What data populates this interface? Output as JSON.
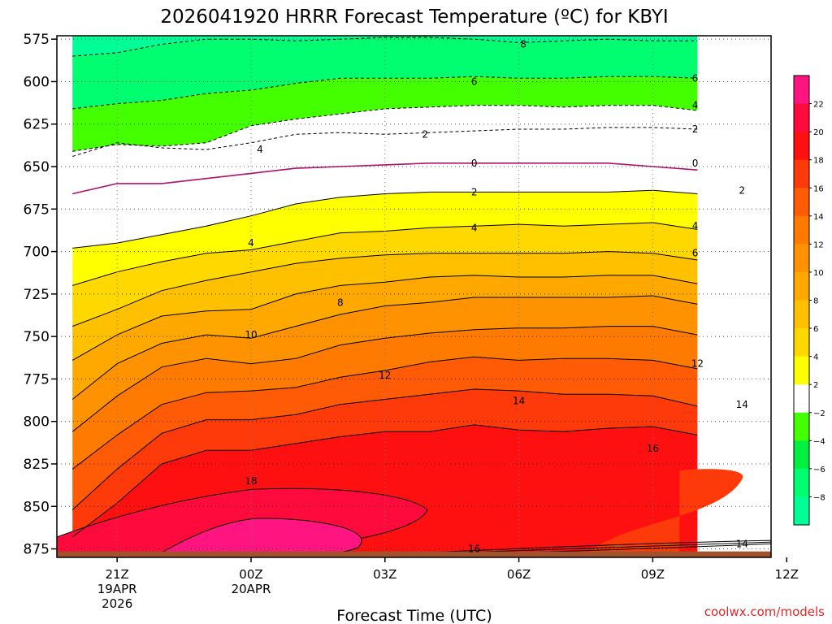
{
  "chart_data": {
    "type": "heatmap",
    "title": "2026041920 HRRR Forecast Temperature (ºC) for KBYI",
    "xlabel": "Forecast Time (UTC)",
    "ylabel": "",
    "credit": "coolwx.com/models",
    "y_levels": [
      "575",
      "600",
      "625",
      "650",
      "675",
      "700",
      "725",
      "750",
      "775",
      "800",
      "825",
      "850",
      "875"
    ],
    "ylim": [
      573,
      880
    ],
    "x_hours": [
      -1,
      0,
      1,
      2,
      3,
      4,
      5,
      6,
      7,
      8,
      9,
      10,
      11,
      12,
      13
    ],
    "x_hour_range": [
      -1.35,
      14.65
    ],
    "x_ticks": [
      {
        "hour": 0,
        "lines": [
          "21Z",
          "19APR",
          "2026"
        ]
      },
      {
        "hour": 3,
        "lines": [
          "00Z",
          "20APR"
        ]
      },
      {
        "hour": 6,
        "lines": [
          "03Z"
        ]
      },
      {
        "hour": 9,
        "lines": [
          "06Z"
        ]
      },
      {
        "hour": 12,
        "lines": [
          "09Z"
        ]
      },
      {
        "hour": 15,
        "lines": [
          "12Z"
        ]
      }
    ],
    "isotherm_pressures": {
      "8": [
        585,
        583,
        578,
        575,
        575,
        576,
        575,
        574,
        574,
        575,
        577,
        576,
        575,
        576,
        576
      ],
      "6": [
        616,
        613,
        611,
        607,
        605,
        601,
        598,
        598,
        598,
        597,
        598,
        598,
        597,
        597,
        598
      ],
      "4": [
        641,
        637,
        638,
        636,
        626,
        622,
        619,
        616,
        615,
        614,
        614,
        615,
        614,
        614,
        617
      ],
      "2": [
        644,
        636,
        639,
        640,
        636,
        631,
        630,
        631,
        630,
        629,
        628,
        628,
        627,
        627,
        628
      ],
      "0": [
        666,
        660,
        660,
        657,
        654,
        651,
        650,
        649,
        648,
        648,
        648,
        648,
        648,
        650,
        652
      ],
      "-2": [
        698,
        695,
        690,
        685,
        679,
        672,
        668,
        666,
        665,
        665,
        665,
        665,
        665,
        664,
        666
      ],
      "-4": [
        720,
        712,
        706,
        701,
        699,
        694,
        689,
        688,
        686,
        685,
        684,
        685,
        684,
        683,
        687
      ],
      "-6": [
        744,
        734,
        723,
        717,
        712,
        707,
        704,
        702,
        701,
        701,
        701,
        701,
        700,
        701,
        705
      ],
      "-8": [
        764,
        749,
        738,
        735,
        734,
        725,
        720,
        718,
        715,
        714,
        715,
        715,
        714,
        714,
        719
      ],
      "-10": [
        787,
        766,
        754,
        749,
        751,
        744,
        737,
        732,
        730,
        727,
        727,
        727,
        727,
        726,
        731
      ],
      "-12": [
        806,
        785,
        768,
        763,
        766,
        763,
        755,
        751,
        748,
        746,
        745,
        745,
        744,
        744,
        749
      ],
      "-14": [
        828,
        808,
        790,
        783,
        782,
        780,
        774,
        770,
        765,
        762,
        764,
        763,
        763,
        764,
        769
      ],
      "-16": [
        852,
        828,
        807,
        799,
        799,
        796,
        790,
        787,
        784,
        781,
        782,
        784,
        784,
        785,
        791
      ],
      "-18": [
        868,
        848,
        825,
        817,
        817,
        813,
        809,
        806,
        806,
        802,
        805,
        806,
        804,
        803,
        808
      ]
    },
    "contour_labels": [
      {
        "text": "8",
        "hour": 9.1,
        "p": 578
      },
      {
        "text": "6",
        "hour": 8.0,
        "p": 600
      },
      {
        "text": "6",
        "hour": 12.95,
        "p": 598
      },
      {
        "text": "4",
        "hour": 3.2,
        "p": 640
      },
      {
        "text": "4",
        "hour": 12.95,
        "p": 614
      },
      {
        "text": "2",
        "hour": 6.9,
        "p": 631
      },
      {
        "text": "2",
        "hour": 12.95,
        "p": 628
      },
      {
        "text": "0",
        "hour": 8.0,
        "p": 648
      },
      {
        "text": "0",
        "hour": 12.95,
        "p": 648
      },
      {
        "text": "2",
        "hour": 8.0,
        "p": 665
      },
      {
        "text": "2",
        "hour": 14.0,
        "p": 664
      },
      {
        "text": "4",
        "hour": 8.0,
        "p": 686
      },
      {
        "text": "4",
        "hour": 12.95,
        "p": 685
      },
      {
        "text": "4",
        "hour": 3.0,
        "p": 695
      },
      {
        "text": "6",
        "hour": 12.95,
        "p": 701
      },
      {
        "text": "8",
        "hour": 5.0,
        "p": 730
      },
      {
        "text": "10",
        "hour": 3.0,
        "p": 749
      },
      {
        "text": "12",
        "hour": 6.0,
        "p": 773
      },
      {
        "text": "12",
        "hour": 13.0,
        "p": 766
      },
      {
        "text": "14",
        "hour": 9.0,
        "p": 788
      },
      {
        "text": "14",
        "hour": 14.0,
        "p": 790
      },
      {
        "text": "16",
        "hour": 12.0,
        "p": 816
      },
      {
        "text": "16",
        "hour": 8.0,
        "p": 875
      },
      {
        "text": "14",
        "hour": 14.0,
        "p": 872
      },
      {
        "text": "18",
        "hour": 3.0,
        "p": 835
      }
    ],
    "legend": {
      "position": "right",
      "levels": [
        24,
        22,
        20,
        18,
        16,
        14,
        12,
        10,
        8,
        6,
        4,
        2,
        -2,
        -4,
        -6,
        -8
      ],
      "labels": [
        "22",
        "20",
        "18",
        "16",
        "14",
        "12",
        "10",
        "8",
        "6",
        "4",
        "2",
        "−2",
        "−4",
        "−6",
        "−8"
      ],
      "colors": [
        "#ff1480",
        "#ff0a3c",
        "#ff1010",
        "#ff3a0a",
        "#ff5a05",
        "#ff7a00",
        "#ff9200",
        "#ffa800",
        "#ffc000",
        "#ffd800",
        "#ffff00",
        "#ffffff",
        "#44ff00",
        "#00f040",
        "#00ff70",
        "#00ff96"
      ]
    },
    "band_colors": {
      "cold8": "#00ff96",
      "cold6": "#00ff70",
      "cold4": "#44ff00",
      "zero_band": "#ffffff",
      "w2": "#ffff00",
      "w4": "#ffd800",
      "w6": "#ffc000",
      "w8": "#ffa800",
      "w10": "#ff9200",
      "w12": "#ff7a00",
      "w14": "#ff5a05",
      "w16": "#ff3a0a",
      "w18": "#ff1010",
      "w20": "#ff0a3c",
      "w22": "#ff1480",
      "ground": "#a0522d",
      "zero_line": "#b0106a"
    }
  }
}
